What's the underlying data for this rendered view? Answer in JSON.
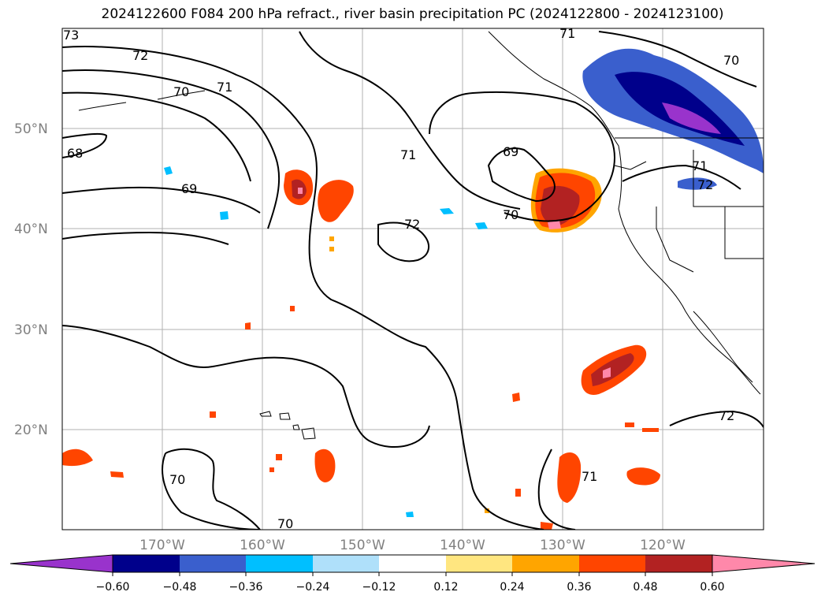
{
  "title": "2024122600 F084 200 hPa refract., river basin precipitation PC (2024122800 - 2024123100)",
  "map": {
    "lat_labels": [
      "50°N",
      "40°N",
      "30°N",
      "20°N"
    ],
    "lon_labels": [
      "170°W",
      "160°W",
      "150°W",
      "140°W",
      "130°W",
      "120°W"
    ],
    "contour_labels": [
      "73",
      "72",
      "71",
      "70",
      "71",
      "68",
      "69",
      "71",
      "69",
      "72",
      "70",
      "71",
      "70",
      "72",
      "72",
      "70",
      "70",
      "71"
    ]
  },
  "colorbar": {
    "colors": [
      "#9933cc",
      "#00008b",
      "#3a5fcd",
      "#00bfff",
      "#afe0fa",
      "#ffffff",
      "#ffe680",
      "#ffa500",
      "#ff4500",
      "#b22222",
      "#ff88aa"
    ],
    "ticks": [
      "−0.60",
      "−0.48",
      "−0.36",
      "−0.24",
      "−0.12",
      "0.12",
      "0.24",
      "0.36",
      "0.48",
      "0.60"
    ]
  }
}
